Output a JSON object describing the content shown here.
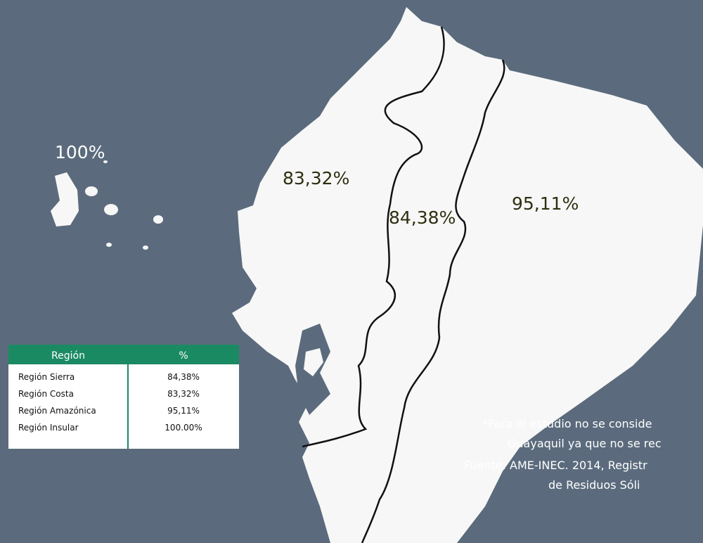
{
  "map_labels": {
    "insular": "100%",
    "costa": "83,32%",
    "sierra": "84,38%",
    "amazonica": "95,11%"
  },
  "table": {
    "header": [
      "Región",
      "%"
    ],
    "rows": [
      [
        "Región Sierra",
        "84,38%"
      ],
      [
        "Región Costa",
        "83,32%"
      ],
      [
        "Región Amazónica",
        "95,11%"
      ],
      [
        "Región Insular",
        "100.00%"
      ]
    ]
  },
  "notes": [
    "*Para el estudio no se conside",
    "Guayaquil ya que no se rec",
    "Fuente: AME-INEC. 2014, Registr",
    "de Residuos Sóli"
  ]
}
